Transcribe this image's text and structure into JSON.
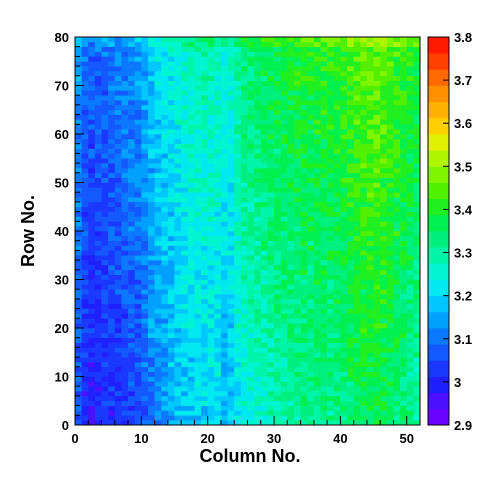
{
  "chart_data": {
    "type": "heatmap",
    "xlabel": "Column No.",
    "ylabel": "Row No.",
    "xlim": [
      0,
      52
    ],
    "ylim": [
      0,
      80
    ],
    "x_ticks": [
      "0",
      "10",
      "20",
      "30",
      "40",
      "50"
    ],
    "y_ticks": [
      "0",
      "10",
      "20",
      "30",
      "40",
      "50",
      "60",
      "70",
      "80"
    ],
    "colorbar": {
      "range": [
        2.9,
        3.8
      ],
      "ticks": [
        "2.9",
        "3",
        "3.1",
        "3.2",
        "3.3",
        "3.4",
        "3.5",
        "3.6",
        "3.7",
        "3.8"
      ],
      "palette": [
        "#6a00ff",
        "#4a10ff",
        "#2020ff",
        "#1a38ff",
        "#1458ff",
        "#0a78ff",
        "#00a0ff",
        "#00c8ff",
        "#00e8f0",
        "#00f5d0",
        "#00f5a8",
        "#00f080",
        "#00f050",
        "#20f020",
        "#50f000",
        "#80f500",
        "#b0f500",
        "#e0f000",
        "#ffd000",
        "#ffb000",
        "#ff9000",
        "#ff6a00",
        "#ff4000",
        "#ff1a00"
      ]
    },
    "grid": {
      "columns": 52,
      "rows": 80,
      "column_profile": [
        [
          0,
          3.07
        ],
        [
          2,
          2.98
        ],
        [
          4,
          3.0
        ],
        [
          7,
          3.02
        ],
        [
          10,
          3.06
        ],
        [
          12,
          3.11
        ],
        [
          15,
          3.16
        ],
        [
          18,
          3.19
        ],
        [
          21,
          3.2
        ],
        [
          23,
          3.15
        ],
        [
          25,
          3.24
        ],
        [
          30,
          3.28
        ],
        [
          35,
          3.31
        ],
        [
          40,
          3.32
        ],
        [
          43,
          3.36
        ],
        [
          46,
          3.37
        ],
        [
          49,
          3.33
        ],
        [
          51,
          3.3
        ]
      ],
      "row_trend_per_row": 0.0012,
      "top_rows_offset": 0.04
    }
  }
}
